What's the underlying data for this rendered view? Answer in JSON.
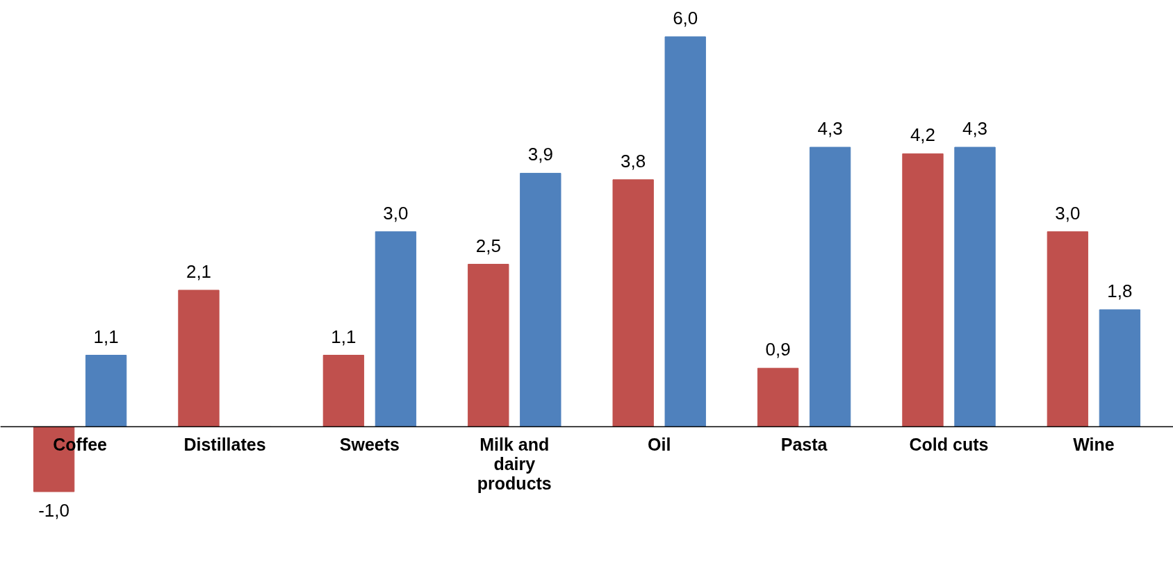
{
  "chart_data": {
    "type": "bar",
    "categories": [
      "Coffee",
      "Distillates",
      "Sweets",
      "Milk and dairy products",
      "Oil",
      "Pasta",
      "Cold cuts",
      "Wine"
    ],
    "series": [
      {
        "color": "#c0504d",
        "values": [
          -1.0,
          2.1,
          1.1,
          2.5,
          3.8,
          0.9,
          4.2,
          3.0
        ],
        "value_labels": [
          "-1,0",
          "2,1",
          "1,1",
          "2,5",
          "3,8",
          "0,9",
          "4,2",
          "3,0"
        ]
      },
      {
        "color": "#4f81bd",
        "values": [
          1.1,
          0.0,
          3.0,
          3.9,
          6.0,
          4.3,
          4.3,
          1.8
        ],
        "value_labels": [
          "1,1",
          null,
          "3,0",
          "3,9",
          "6,0",
          "4,3",
          "4,3",
          "1,8"
        ]
      }
    ]
  }
}
